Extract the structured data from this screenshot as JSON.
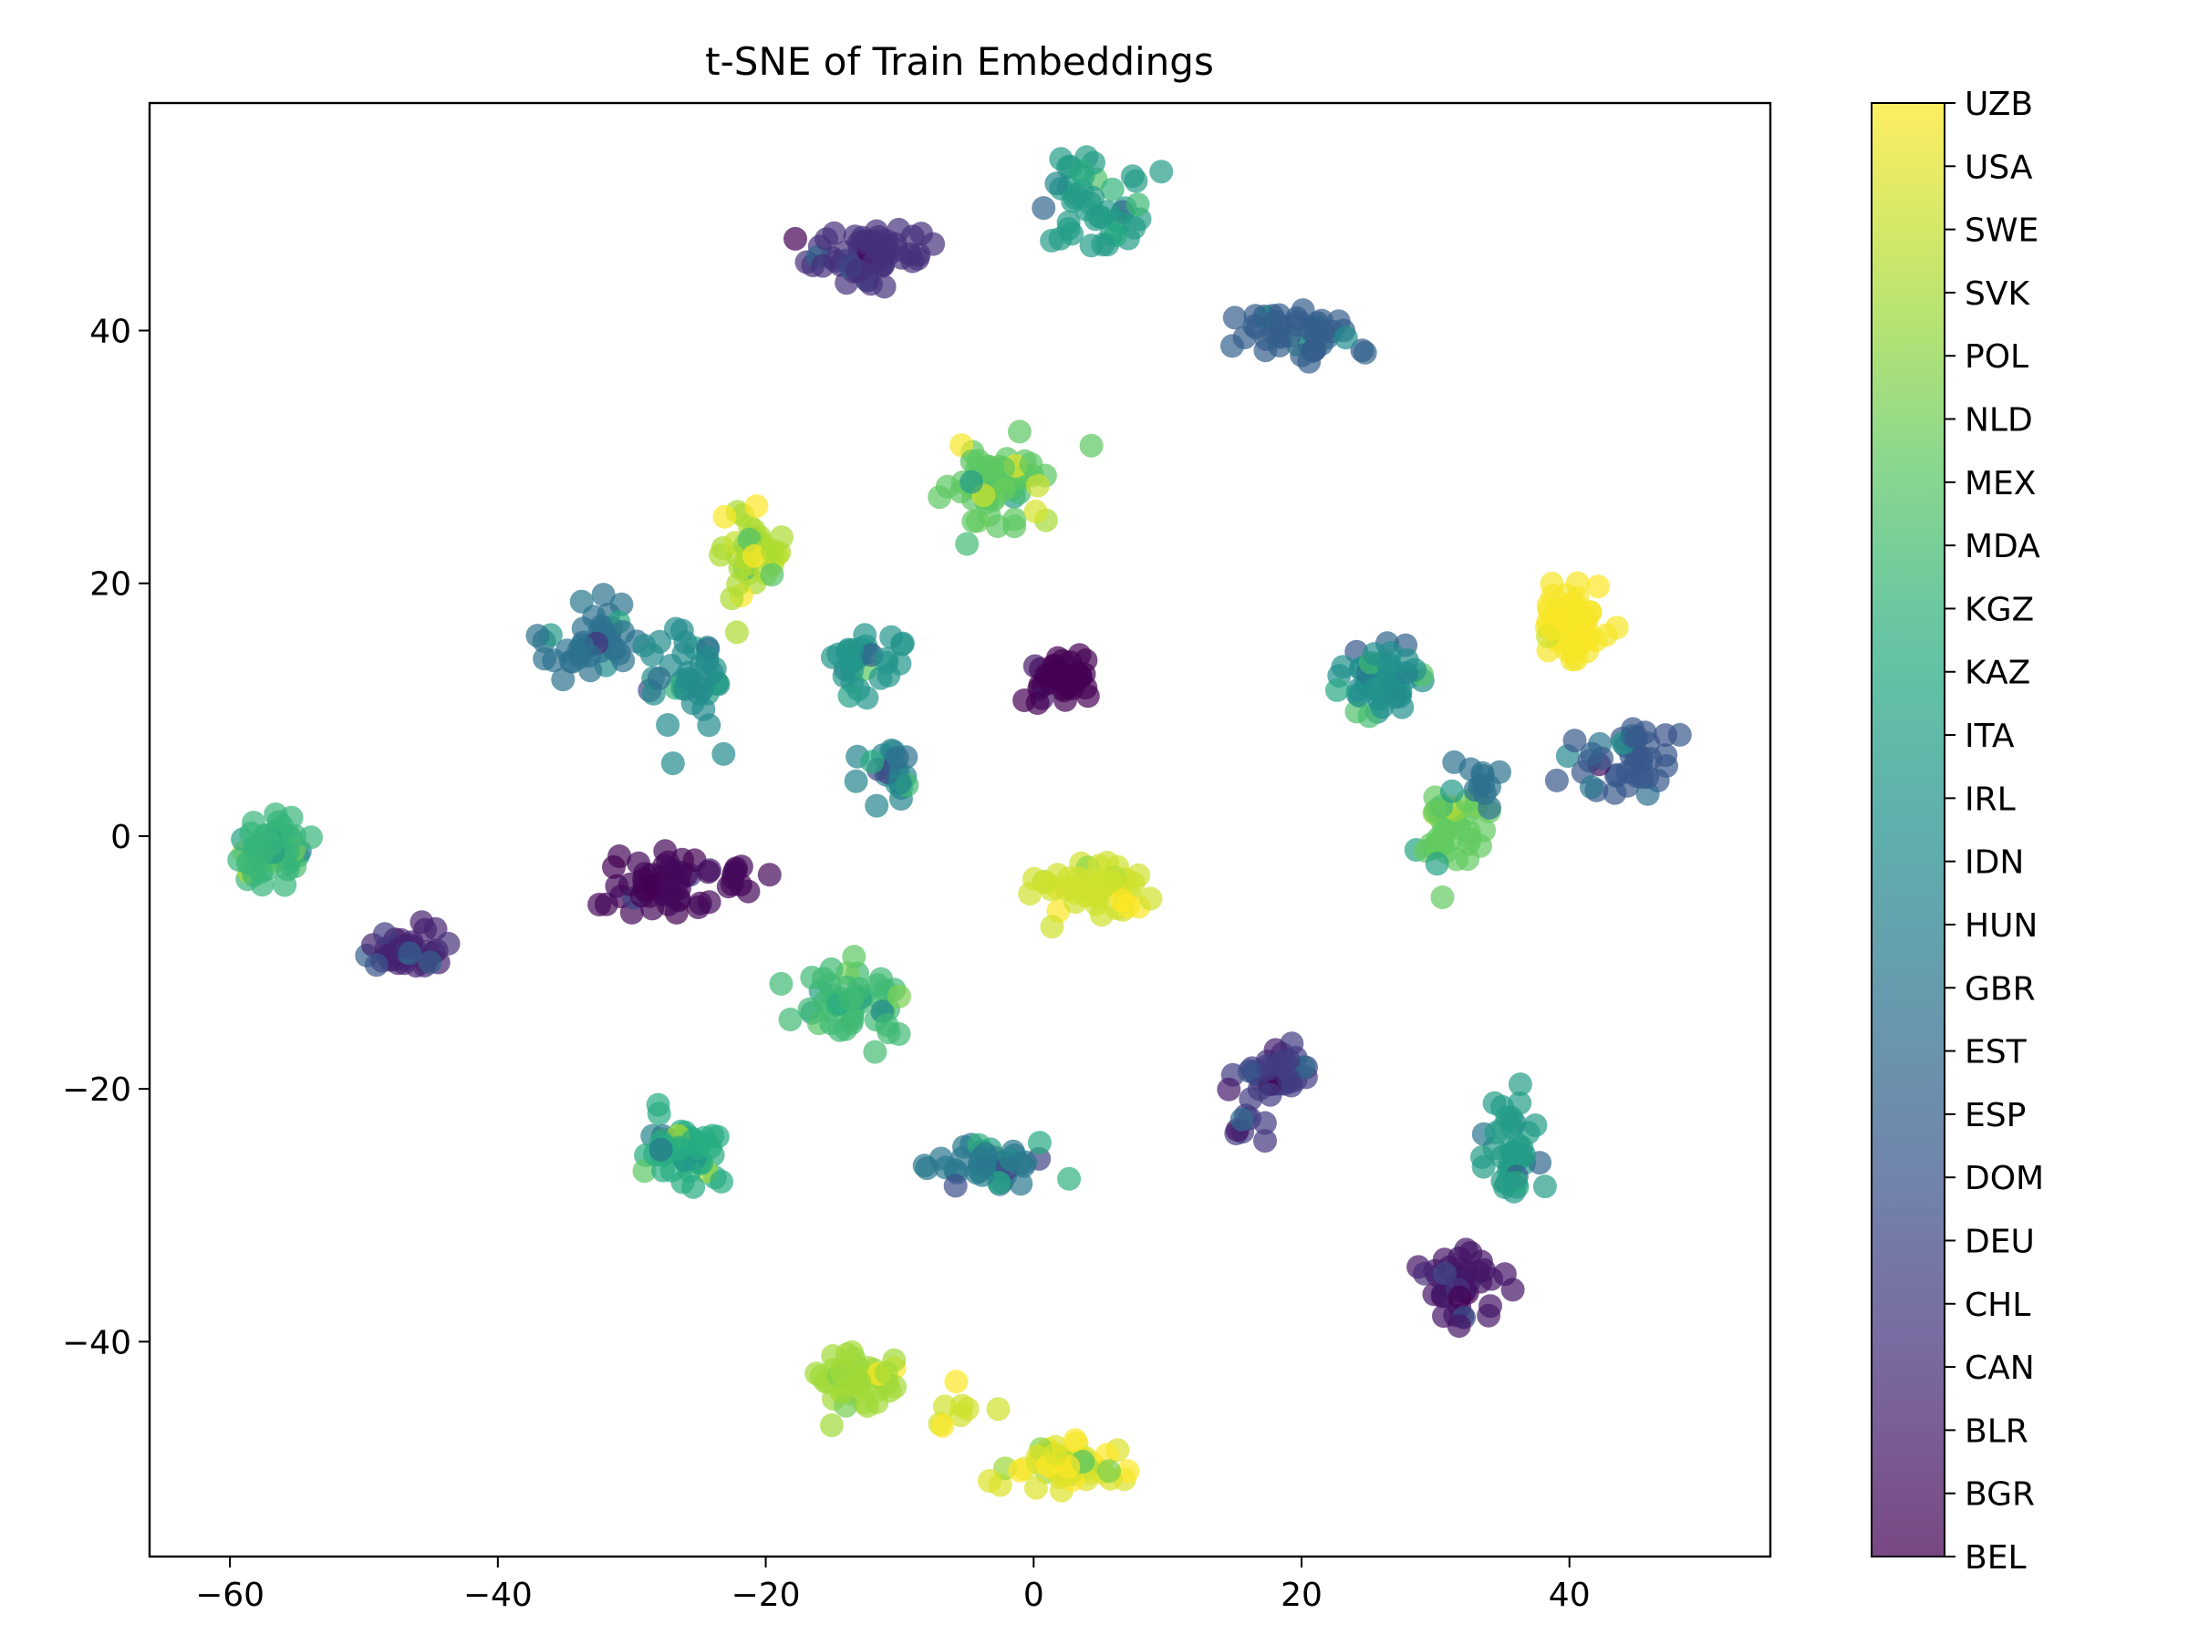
{
  "chart_data": {
    "type": "scatter",
    "title": "t-SNE of Train Embeddings",
    "xlabel": "",
    "ylabel": "",
    "xlim": [
      -66,
      55
    ],
    "ylim": [
      -57,
      58
    ],
    "x_ticks": [
      -60,
      -40,
      -20,
      0,
      20,
      40
    ],
    "y_ticks": [
      -40,
      -20,
      0,
      20,
      40
    ],
    "x_tick_labels": [
      "−60",
      "−40",
      "−20",
      "0",
      "20",
      "40"
    ],
    "y_tick_labels": [
      "−40",
      "−20",
      "0",
      "20",
      "40"
    ],
    "grid": false,
    "colormap": "viridis",
    "marker_alpha": 0.7,
    "colorbar": {
      "labels": [
        "BEL",
        "BGR",
        "BLR",
        "CAN",
        "CHL",
        "DEU",
        "DOM",
        "ESP",
        "EST",
        "GBR",
        "HUN",
        "IDN",
        "IRL",
        "ITA",
        "KAZ",
        "KGZ",
        "MDA",
        "MEX",
        "NLD",
        "POL",
        "SVK",
        "SWE",
        "USA",
        "UZB"
      ],
      "placement": "right"
    },
    "clusters": [
      {
        "cx": -12,
        "cy": 46,
        "sx": 3.0,
        "sy": 1.4,
        "n": 60,
        "c": 0.14
      },
      {
        "cx": 5,
        "cy": 49.5,
        "sx": 2.4,
        "sy": 2.0,
        "n": 45,
        "c": 0.55
      },
      {
        "cx": 19,
        "cy": 40,
        "sx": 2.4,
        "sy": 1.8,
        "n": 45,
        "c": 0.3
      },
      {
        "cx": -3,
        "cy": 28,
        "sx": 2.4,
        "sy": 1.8,
        "n": 55,
        "c": 0.75
      },
      {
        "cx": -21,
        "cy": 22,
        "sx": 1.4,
        "sy": 2.2,
        "n": 40,
        "c": 0.88
      },
      {
        "cx": -33,
        "cy": 16,
        "sx": 2.4,
        "sy": 2.2,
        "n": 40,
        "c": 0.38
      },
      {
        "cx": -26,
        "cy": 12,
        "sx": 2.0,
        "sy": 2.6,
        "n": 40,
        "c": 0.48
      },
      {
        "cx": -12,
        "cy": 14,
        "sx": 2.2,
        "sy": 1.6,
        "n": 30,
        "c": 0.52
      },
      {
        "cx": 2,
        "cy": 12.5,
        "sx": 1.6,
        "sy": 1.2,
        "n": 40,
        "c": 0.0
      },
      {
        "cx": -11,
        "cy": 5,
        "sx": 1.6,
        "sy": 1.4,
        "n": 20,
        "c": 0.45
      },
      {
        "cx": 26,
        "cy": 12,
        "sx": 2.0,
        "sy": 1.6,
        "n": 50,
        "c": 0.5
      },
      {
        "cx": 40,
        "cy": 17,
        "sx": 1.6,
        "sy": 2.2,
        "n": 50,
        "c": 0.99
      },
      {
        "cx": 45,
        "cy": 6,
        "sx": 2.2,
        "sy": 1.8,
        "n": 40,
        "c": 0.28
      },
      {
        "cx": 31,
        "cy": 0,
        "sx": 1.6,
        "sy": 2.2,
        "n": 40,
        "c": 0.76
      },
      {
        "cx": 33,
        "cy": 4,
        "sx": 1.2,
        "sy": 1.2,
        "n": 12,
        "c": 0.38
      },
      {
        "cx": -57,
        "cy": -1,
        "sx": 1.6,
        "sy": 1.6,
        "n": 60,
        "c": 0.66
      },
      {
        "cx": -47,
        "cy": -9,
        "sx": 2.0,
        "sy": 1.2,
        "n": 40,
        "c": 0.1
      },
      {
        "cx": -28,
        "cy": -4,
        "sx": 2.2,
        "sy": 1.6,
        "n": 50,
        "c": 0.02
      },
      {
        "cx": -22,
        "cy": -3,
        "sx": 1.2,
        "sy": 1.0,
        "n": 10,
        "c": 0.02
      },
      {
        "cx": 4,
        "cy": -4,
        "sx": 2.4,
        "sy": 1.4,
        "n": 50,
        "c": 0.93
      },
      {
        "cx": -13,
        "cy": -13,
        "sx": 2.2,
        "sy": 1.8,
        "n": 50,
        "c": 0.68
      },
      {
        "cx": 18,
        "cy": -19,
        "sx": 1.8,
        "sy": 1.4,
        "n": 35,
        "c": 0.18
      },
      {
        "cx": 16,
        "cy": -23,
        "sx": 0.8,
        "sy": 1.0,
        "n": 8,
        "c": 0.18
      },
      {
        "cx": -26,
        "cy": -25,
        "sx": 2.0,
        "sy": 1.4,
        "n": 50,
        "c": 0.62
      },
      {
        "cx": -3,
        "cy": -26,
        "sx": 2.6,
        "sy": 1.2,
        "n": 40,
        "c": 0.4
      },
      {
        "cx": 36,
        "cy": -25,
        "sx": 1.4,
        "sy": 2.6,
        "n": 40,
        "c": 0.55
      },
      {
        "cx": 32,
        "cy": -36,
        "sx": 1.8,
        "sy": 2.0,
        "n": 40,
        "c": 0.06
      },
      {
        "cx": -13,
        "cy": -43,
        "sx": 2.2,
        "sy": 1.5,
        "n": 45,
        "c": 0.86
      },
      {
        "cx": 2,
        "cy": -50,
        "sx": 2.2,
        "sy": 1.1,
        "n": 50,
        "c": 0.95
      },
      {
        "cx": -6,
        "cy": -45,
        "sx": 1.6,
        "sy": 1.0,
        "n": 8,
        "c": 0.93
      }
    ]
  }
}
